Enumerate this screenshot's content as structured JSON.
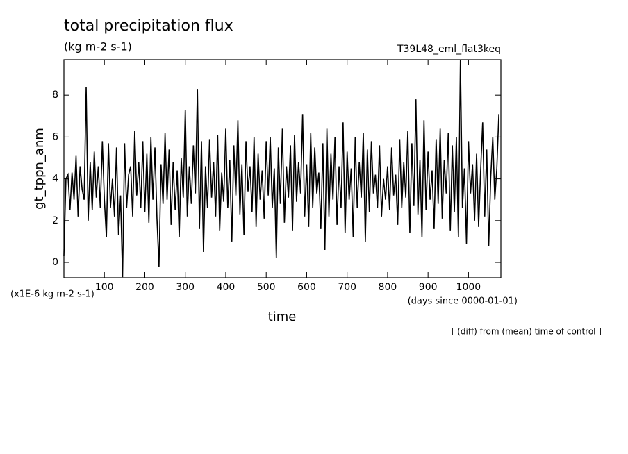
{
  "chart_data": {
    "type": "line",
    "title": "total precipitation flux",
    "subtitle": "(kg m-2 s-1)",
    "run_label": "T39L48_eml_flat3keq",
    "ylabel": "gt_tppn_anm",
    "y_unit_label": "(x1E-6 kg m-2 s-1)",
    "xlabel": "time",
    "x_unit_label": "(days since 0000-01-01)",
    "note": "[ (diff) from (mean) time of control ]",
    "color": "#000000",
    "xlim": [
      0,
      1080
    ],
    "ylim": [
      -0.73,
      9.7
    ],
    "xticks": [
      100,
      200,
      300,
      400,
      500,
      600,
      700,
      800,
      900,
      1000
    ],
    "yticks": [
      0,
      2,
      4,
      6,
      8
    ],
    "x": [
      0,
      5,
      10,
      15,
      20,
      25,
      30,
      35,
      40,
      45,
      50,
      55,
      60,
      65,
      70,
      75,
      80,
      85,
      90,
      95,
      100,
      105,
      110,
      115,
      120,
      125,
      130,
      135,
      140,
      145,
      150,
      155,
      160,
      165,
      170,
      175,
      180,
      185,
      190,
      195,
      200,
      205,
      210,
      215,
      220,
      225,
      230,
      235,
      240,
      245,
      250,
      255,
      260,
      265,
      270,
      275,
      280,
      285,
      290,
      295,
      300,
      305,
      310,
      315,
      320,
      325,
      330,
      335,
      340,
      345,
      350,
      355,
      360,
      365,
      370,
      375,
      380,
      385,
      390,
      395,
      400,
      405,
      410,
      415,
      420,
      425,
      430,
      435,
      440,
      445,
      450,
      455,
      460,
      465,
      470,
      475,
      480,
      485,
      490,
      495,
      500,
      505,
      510,
      515,
      520,
      525,
      530,
      535,
      540,
      545,
      550,
      555,
      560,
      565,
      570,
      575,
      580,
      585,
      590,
      595,
      600,
      605,
      610,
      615,
      620,
      625,
      630,
      635,
      640,
      645,
      650,
      655,
      660,
      665,
      670,
      675,
      680,
      685,
      690,
      695,
      700,
      705,
      710,
      715,
      720,
      725,
      730,
      735,
      740,
      745,
      750,
      755,
      760,
      765,
      770,
      775,
      780,
      785,
      790,
      795,
      800,
      805,
      810,
      815,
      820,
      825,
      830,
      835,
      840,
      845,
      850,
      855,
      860,
      865,
      870,
      875,
      880,
      885,
      890,
      895,
      900,
      905,
      910,
      915,
      920,
      925,
      930,
      935,
      940,
      945,
      950,
      955,
      960,
      965,
      970,
      975,
      980,
      985,
      990,
      995,
      1000,
      1005,
      1010,
      1015,
      1020,
      1025,
      1030,
      1035,
      1040,
      1045,
      1050,
      1055,
      1060,
      1065,
      1070,
      1075
    ],
    "values": [
      0.3,
      4.0,
      4.2,
      2.5,
      4.3,
      3.0,
      5.1,
      2.2,
      4.6,
      3.5,
      3.0,
      8.4,
      2.0,
      4.8,
      2.5,
      5.3,
      3.1,
      4.6,
      2.6,
      5.8,
      3.0,
      1.2,
      5.7,
      2.6,
      4.0,
      2.2,
      5.5,
      1.3,
      3.2,
      -0.7,
      5.7,
      2.6,
      4.2,
      4.6,
      2.2,
      6.3,
      3.2,
      4.8,
      2.6,
      5.8,
      2.4,
      5.2,
      1.9,
      6.0,
      3.0,
      5.5,
      2.1,
      -0.2,
      4.7,
      2.8,
      6.2,
      3.0,
      5.4,
      1.8,
      4.8,
      2.5,
      4.4,
      1.2,
      5.0,
      3.1,
      7.3,
      2.2,
      4.6,
      2.8,
      5.6,
      3.3,
      8.3,
      1.6,
      5.8,
      0.5,
      4.6,
      2.6,
      5.9,
      3.1,
      4.8,
      2.2,
      6.1,
      1.5,
      4.3,
      2.9,
      6.4,
      2.6,
      4.9,
      1.0,
      5.6,
      3.2,
      6.8,
      2.3,
      4.7,
      1.3,
      5.8,
      3.4,
      4.6,
      2.4,
      6.0,
      1.7,
      5.2,
      3.0,
      4.4,
      2.1,
      5.8,
      3.2,
      6.0,
      2.6,
      4.5,
      0.2,
      5.5,
      2.8,
      6.4,
      1.9,
      4.6,
      3.1,
      5.6,
      1.5,
      6.1,
      2.9,
      4.8,
      3.3,
      7.1,
      2.2,
      4.7,
      1.7,
      6.2,
      2.6,
      5.5,
      3.3,
      4.3,
      1.6,
      5.7,
      0.6,
      6.4,
      2.2,
      5.2,
      3.0,
      6.0,
      1.8,
      4.6,
      2.6,
      6.7,
      1.4,
      5.3,
      3.0,
      4.5,
      1.2,
      6.0,
      2.6,
      4.8,
      3.1,
      6.2,
      1.0,
      5.4,
      2.4,
      5.8,
      3.3,
      4.2,
      2.6,
      5.6,
      2.2,
      4.0,
      3.0,
      4.6,
      2.5,
      5.5,
      3.2,
      4.2,
      1.8,
      5.9,
      2.6,
      4.8,
      3.1,
      6.3,
      1.4,
      5.7,
      2.7,
      7.8,
      2.3,
      4.9,
      1.2,
      6.8,
      2.5,
      5.3,
      3.0,
      4.4,
      1.6,
      5.9,
      2.8,
      6.4,
      2.1,
      4.9,
      3.3,
      6.2,
      1.5,
      5.6,
      2.4,
      6.0,
      1.2,
      9.7,
      2.6,
      4.5,
      0.9,
      5.8,
      3.3,
      4.7,
      2.0,
      5.2,
      1.7,
      4.4,
      6.7,
      2.2,
      5.4,
      0.8,
      4.1,
      6.0,
      3.0,
      4.5,
      7.1
    ]
  }
}
